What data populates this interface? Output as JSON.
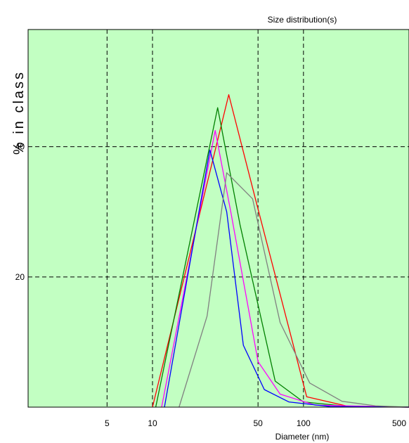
{
  "chart_data": {
    "type": "line",
    "title": "Size distribution(s)",
    "xlabel": "Diameter (nm)",
    "ylabel": "% in class",
    "x_scale": "log",
    "xlim": [
      1.5,
      500
    ],
    "ylim": [
      0,
      58
    ],
    "x_ticks": [
      5,
      10,
      50,
      100,
      500
    ],
    "x_tick_labels": [
      "5",
      "10",
      "50",
      "100",
      "500"
    ],
    "y_ticks": [
      20,
      40
    ],
    "y_tick_labels": [
      "20",
      "40"
    ],
    "grid": true,
    "background": "#c2ffc2",
    "series": [
      {
        "color": "#ff0000",
        "points": [
          [
            10,
            0
          ],
          [
            32,
            48
          ],
          [
            48,
            32
          ],
          [
            105,
            1.6
          ],
          [
            200,
            0.1
          ],
          [
            500,
            0
          ]
        ]
      },
      {
        "color": "#008000",
        "points": [
          [
            10.5,
            0
          ],
          [
            27,
            46
          ],
          [
            38,
            28
          ],
          [
            65,
            4
          ],
          [
            100,
            0.8
          ],
          [
            200,
            0.1
          ],
          [
            500,
            0
          ]
        ]
      },
      {
        "color": "#ff00ff",
        "points": [
          [
            11.5,
            0
          ],
          [
            26,
            42.5
          ],
          [
            33,
            30
          ],
          [
            50,
            7
          ],
          [
            70,
            2
          ],
          [
            120,
            0.3
          ],
          [
            500,
            0
          ]
        ]
      },
      {
        "color": "#0000ff",
        "points": [
          [
            12,
            0
          ],
          [
            24,
            39.5
          ],
          [
            31,
            30
          ],
          [
            40,
            9.5
          ],
          [
            55,
            2.7
          ],
          [
            80,
            0.8
          ],
          [
            150,
            0.1
          ],
          [
            500,
            0
          ]
        ]
      },
      {
        "color": "#808080",
        "points": [
          [
            15,
            0
          ],
          [
            23,
            14
          ],
          [
            31,
            36
          ],
          [
            46,
            32
          ],
          [
            70,
            13
          ],
          [
            110,
            3.7
          ],
          [
            180,
            0.9
          ],
          [
            300,
            0.2
          ],
          [
            500,
            0
          ]
        ]
      }
    ]
  }
}
